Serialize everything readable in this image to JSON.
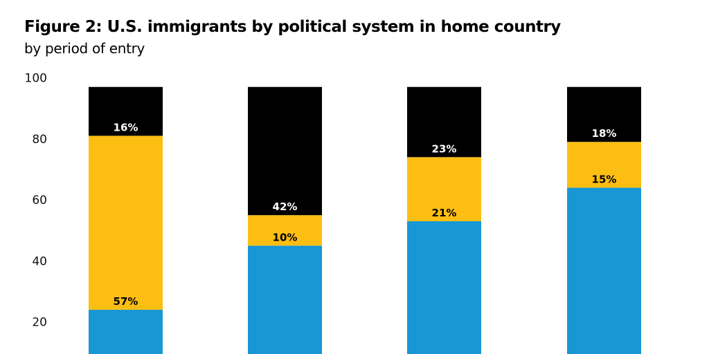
{
  "chart_data": {
    "type": "bar",
    "stacked": true,
    "title": "Figure 2: U.S. immigrants by political system in home country",
    "subtitle": "by period of entry",
    "ylim": [
      0,
      100
    ],
    "yticks": [
      20,
      40,
      60,
      80,
      100
    ],
    "grid": false,
    "categories": [
      "",
      "",
      "",
      ""
    ],
    "series": [
      {
        "color": "#1897d4",
        "values": [
          24,
          45,
          53,
          64
        ],
        "labels_visible": false
      },
      {
        "color": "#fdbe14",
        "values": [
          57,
          10,
          21,
          15
        ],
        "labels": [
          "57%",
          "10%",
          "21%",
          "15%"
        ],
        "label_color": "#000000"
      },
      {
        "color": "#000000",
        "values": [
          16,
          42,
          23,
          18
        ],
        "labels": [
          "16%",
          "42%",
          "23%",
          "18%"
        ],
        "label_color": "#ffffff"
      }
    ]
  }
}
